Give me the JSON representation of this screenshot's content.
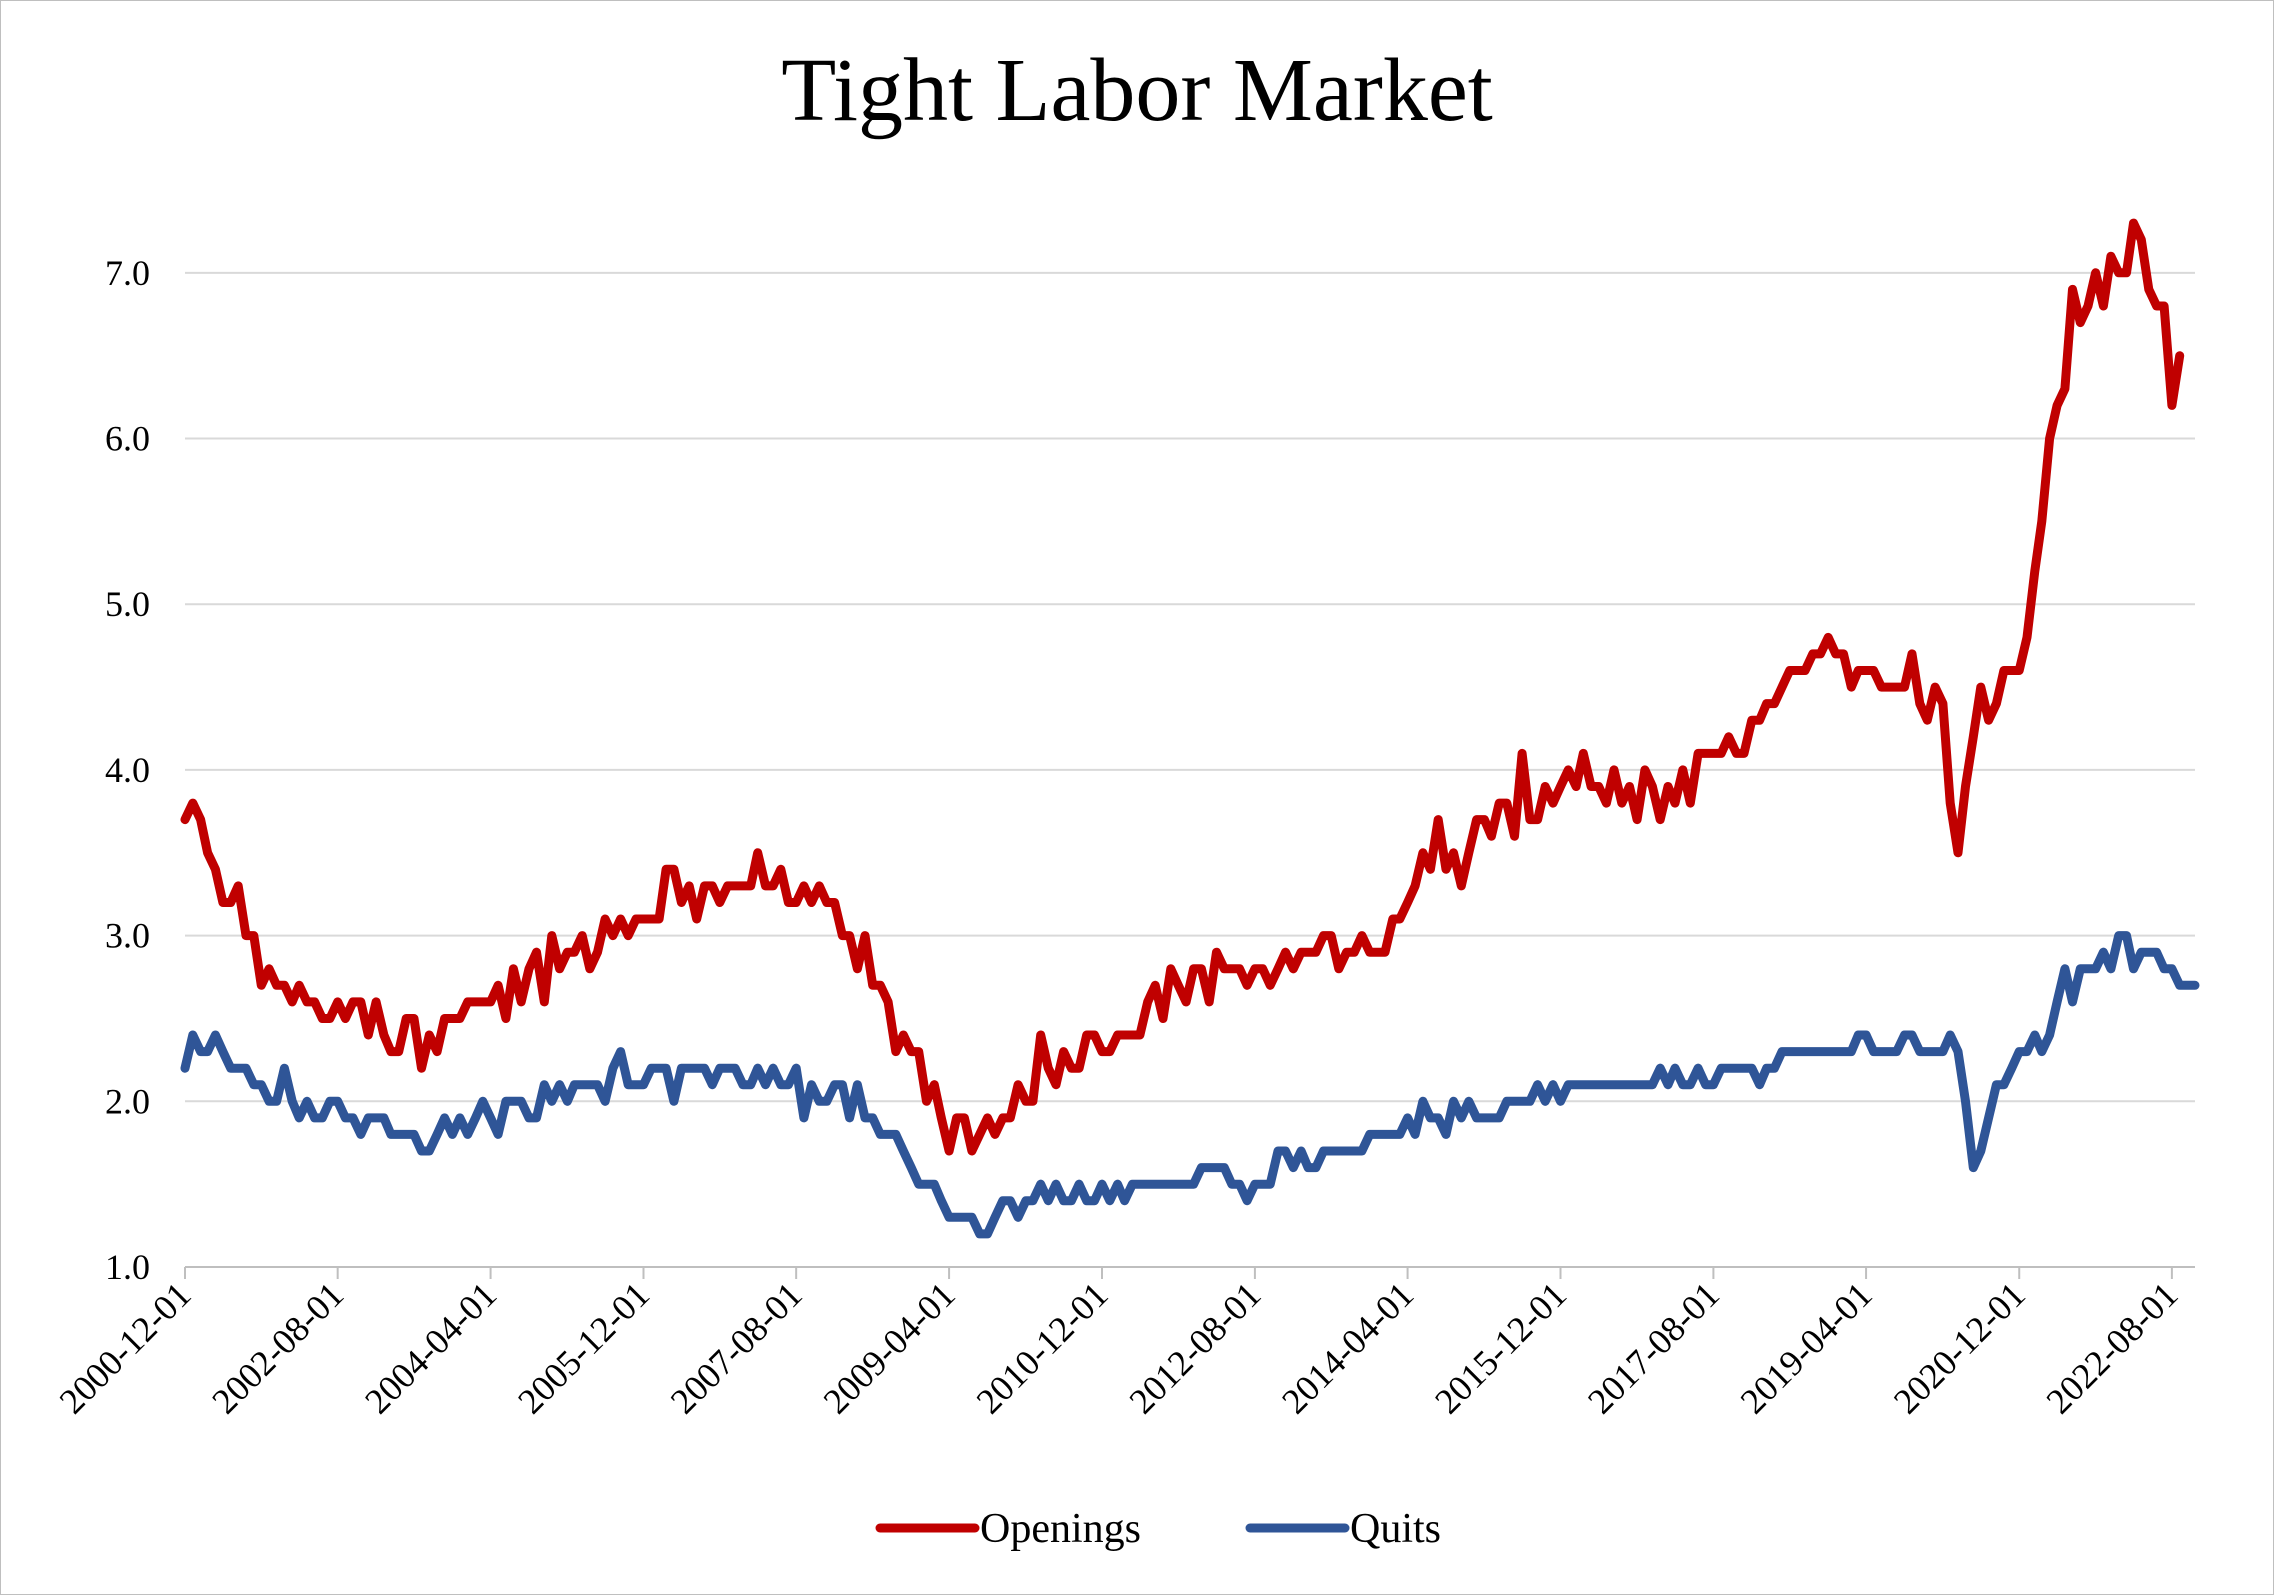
{
  "chart_data": {
    "type": "line",
    "title": "Tight Labor Market",
    "xlabel": "",
    "ylabel": "",
    "ylim": [
      1.0,
      7.5
    ],
    "yticks": [
      "1.0",
      "2.0",
      "3.0",
      "4.0",
      "5.0",
      "6.0",
      "7.0"
    ],
    "xticks": [
      "2000-12-01",
      "2002-08-01",
      "2004-04-01",
      "2005-12-01",
      "2007-08-01",
      "2009-04-01",
      "2010-12-01",
      "2012-08-01",
      "2014-04-01",
      "2015-12-01",
      "2017-08-01",
      "2019-04-01",
      "2020-12-01",
      "2022-08-01"
    ],
    "x_start": "2000-12-01",
    "x_end": "2022-11-01",
    "grid": true,
    "legend_position": "bottom",
    "colors": {
      "Openings": "#c00000",
      "Quits": "#2f5597"
    },
    "series": [
      {
        "name": "Openings",
        "color": "#c00000",
        "values": [
          3.7,
          3.8,
          3.7,
          3.5,
          3.4,
          3.2,
          3.2,
          3.3,
          3.0,
          3.0,
          2.7,
          2.8,
          2.7,
          2.7,
          2.6,
          2.7,
          2.6,
          2.6,
          2.5,
          2.5,
          2.6,
          2.5,
          2.6,
          2.6,
          2.4,
          2.6,
          2.4,
          2.3,
          2.3,
          2.5,
          2.5,
          2.2,
          2.4,
          2.3,
          2.5,
          2.5,
          2.5,
          2.6,
          2.6,
          2.6,
          2.6,
          2.7,
          2.5,
          2.8,
          2.6,
          2.8,
          2.9,
          2.6,
          3.0,
          2.8,
          2.9,
          2.9,
          3.0,
          2.8,
          2.9,
          3.1,
          3.0,
          3.1,
          3.0,
          3.1,
          3.1,
          3.1,
          3.1,
          3.4,
          3.4,
          3.2,
          3.3,
          3.1,
          3.3,
          3.3,
          3.2,
          3.3,
          3.3,
          3.3,
          3.3,
          3.5,
          3.3,
          3.3,
          3.4,
          3.2,
          3.2,
          3.3,
          3.2,
          3.3,
          3.2,
          3.2,
          3.0,
          3.0,
          2.8,
          3.0,
          2.7,
          2.7,
          2.6,
          2.3,
          2.4,
          2.3,
          2.3,
          2.0,
          2.1,
          1.9,
          1.7,
          1.9,
          1.9,
          1.7,
          1.8,
          1.9,
          1.8,
          1.9,
          1.9,
          2.1,
          2.0,
          2.0,
          2.4,
          2.2,
          2.1,
          2.3,
          2.2,
          2.2,
          2.4,
          2.4,
          2.3,
          2.3,
          2.4,
          2.4,
          2.4,
          2.4,
          2.6,
          2.7,
          2.5,
          2.8,
          2.7,
          2.6,
          2.8,
          2.8,
          2.6,
          2.9,
          2.8,
          2.8,
          2.8,
          2.7,
          2.8,
          2.8,
          2.7,
          2.8,
          2.9,
          2.8,
          2.9,
          2.9,
          2.9,
          3.0,
          3.0,
          2.8,
          2.9,
          2.9,
          3.0,
          2.9,
          2.9,
          2.9,
          3.1,
          3.1,
          3.2,
          3.3,
          3.5,
          3.4,
          3.7,
          3.4,
          3.5,
          3.3,
          3.5,
          3.7,
          3.7,
          3.6,
          3.8,
          3.8,
          3.6,
          4.1,
          3.7,
          3.7,
          3.9,
          3.8,
          3.9,
          4.0,
          3.9,
          4.1,
          3.9,
          3.9,
          3.8,
          4.0,
          3.8,
          3.9,
          3.7,
          4.0,
          3.9,
          3.7,
          3.9,
          3.8,
          4.0,
          3.8,
          4.1,
          4.1,
          4.1,
          4.1,
          4.2,
          4.1,
          4.1,
          4.3,
          4.3,
          4.4,
          4.4,
          4.5,
          4.6,
          4.6,
          4.6,
          4.7,
          4.7,
          4.8,
          4.7,
          4.7,
          4.5,
          4.6,
          4.6,
          4.6,
          4.5,
          4.5,
          4.5,
          4.5,
          4.7,
          4.4,
          4.3,
          4.5,
          4.4,
          3.8,
          3.5,
          3.9,
          4.2,
          4.5,
          4.3,
          4.4,
          4.6,
          4.6,
          4.6,
          4.8,
          5.2,
          5.5,
          6.0,
          6.2,
          6.3,
          6.9,
          6.7,
          6.8,
          7.0,
          6.8,
          7.1,
          7.0,
          7.0,
          7.3,
          7.2,
          6.9,
          6.8,
          6.8,
          6.2,
          6.5
        ]
      },
      {
        "name": "Quits",
        "color": "#2f5597",
        "values": [
          2.2,
          2.4,
          2.3,
          2.3,
          2.4,
          2.3,
          2.2,
          2.2,
          2.2,
          2.1,
          2.1,
          2.0,
          2.0,
          2.2,
          2.0,
          1.9,
          2.0,
          1.9,
          1.9,
          2.0,
          2.0,
          1.9,
          1.9,
          1.8,
          1.9,
          1.9,
          1.9,
          1.8,
          1.8,
          1.8,
          1.8,
          1.7,
          1.7,
          1.8,
          1.9,
          1.8,
          1.9,
          1.8,
          1.9,
          2.0,
          1.9,
          1.8,
          2.0,
          2.0,
          2.0,
          1.9,
          1.9,
          2.1,
          2.0,
          2.1,
          2.0,
          2.1,
          2.1,
          2.1,
          2.1,
          2.0,
          2.2,
          2.3,
          2.1,
          2.1,
          2.1,
          2.2,
          2.2,
          2.2,
          2.0,
          2.2,
          2.2,
          2.2,
          2.2,
          2.1,
          2.2,
          2.2,
          2.2,
          2.1,
          2.1,
          2.2,
          2.1,
          2.2,
          2.1,
          2.1,
          2.2,
          1.9,
          2.1,
          2.0,
          2.0,
          2.1,
          2.1,
          1.9,
          2.1,
          1.9,
          1.9,
          1.8,
          1.8,
          1.8,
          1.7,
          1.6,
          1.5,
          1.5,
          1.5,
          1.4,
          1.3,
          1.3,
          1.3,
          1.3,
          1.2,
          1.2,
          1.3,
          1.4,
          1.4,
          1.3,
          1.4,
          1.4,
          1.5,
          1.4,
          1.5,
          1.4,
          1.4,
          1.5,
          1.4,
          1.4,
          1.5,
          1.4,
          1.5,
          1.4,
          1.5,
          1.5,
          1.5,
          1.5,
          1.5,
          1.5,
          1.5,
          1.5,
          1.5,
          1.6,
          1.6,
          1.6,
          1.6,
          1.5,
          1.5,
          1.4,
          1.5,
          1.5,
          1.5,
          1.7,
          1.7,
          1.6,
          1.7,
          1.6,
          1.6,
          1.7,
          1.7,
          1.7,
          1.7,
          1.7,
          1.7,
          1.8,
          1.8,
          1.8,
          1.8,
          1.8,
          1.9,
          1.8,
          2.0,
          1.9,
          1.9,
          1.8,
          2.0,
          1.9,
          2.0,
          1.9,
          1.9,
          1.9,
          1.9,
          2.0,
          2.0,
          2.0,
          2.0,
          2.1,
          2.0,
          2.1,
          2.0,
          2.1,
          2.1,
          2.1,
          2.1,
          2.1,
          2.1,
          2.1,
          2.1,
          2.1,
          2.1,
          2.1,
          2.1,
          2.2,
          2.1,
          2.2,
          2.1,
          2.1,
          2.2,
          2.1,
          2.1,
          2.2,
          2.2,
          2.2,
          2.2,
          2.2,
          2.1,
          2.2,
          2.2,
          2.3,
          2.3,
          2.3,
          2.3,
          2.3,
          2.3,
          2.3,
          2.3,
          2.3,
          2.3,
          2.4,
          2.4,
          2.3,
          2.3,
          2.3,
          2.3,
          2.4,
          2.4,
          2.3,
          2.3,
          2.3,
          2.3,
          2.4,
          2.3,
          2.0,
          1.6,
          1.7,
          1.9,
          2.1,
          2.1,
          2.2,
          2.3,
          2.3,
          2.4,
          2.3,
          2.4,
          2.6,
          2.8,
          2.6,
          2.8,
          2.8,
          2.8,
          2.9,
          2.8,
          3.0,
          3.0,
          2.8,
          2.9,
          2.9,
          2.9,
          2.8,
          2.8,
          2.7,
          2.7,
          2.7
        ]
      }
    ]
  }
}
